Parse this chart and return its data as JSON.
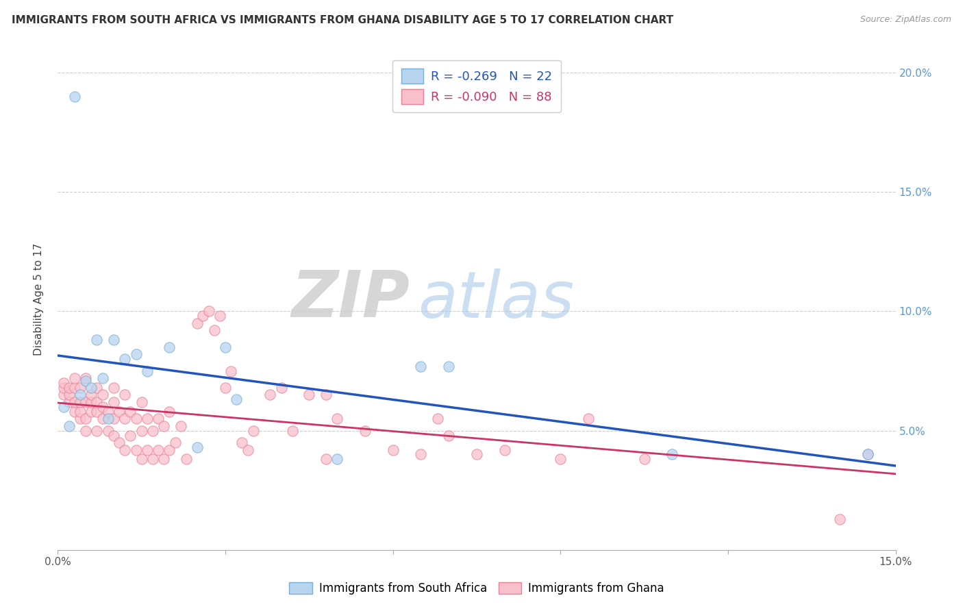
{
  "title": "IMMIGRANTS FROM SOUTH AFRICA VS IMMIGRANTS FROM GHANA DISABILITY AGE 5 TO 17 CORRELATION CHART",
  "source": "Source: ZipAtlas.com",
  "ylabel": "Disability Age 5 to 17",
  "xlim": [
    0.0,
    0.15
  ],
  "ylim": [
    0.0,
    0.21
  ],
  "xtick_positions": [
    0.0,
    0.03,
    0.06,
    0.09,
    0.12,
    0.15
  ],
  "xtick_labels": [
    "0.0%",
    "",
    "",
    "",
    "",
    "15.0%"
  ],
  "yticks_right": [
    0.05,
    0.1,
    0.15,
    0.2
  ],
  "ytick_right_labels": [
    "5.0%",
    "10.0%",
    "15.0%",
    "20.0%"
  ],
  "grid_color": "#cccccc",
  "background_color": "#ffffff",
  "series": [
    {
      "name": "Immigrants from South Africa",
      "R": -0.269,
      "N": 22,
      "color": "#b8d4ee",
      "edge_color": "#7aadd4",
      "line_color": "#2255bb",
      "x": [
        0.001,
        0.002,
        0.003,
        0.004,
        0.005,
        0.006,
        0.007,
        0.008,
        0.009,
        0.01,
        0.012,
        0.014,
        0.016,
        0.02,
        0.025,
        0.03,
        0.032,
        0.05,
        0.065,
        0.07,
        0.11,
        0.145
      ],
      "y": [
        0.06,
        0.052,
        0.19,
        0.065,
        0.071,
        0.068,
        0.088,
        0.072,
        0.055,
        0.088,
        0.08,
        0.082,
        0.075,
        0.085,
        0.043,
        0.085,
        0.063,
        0.038,
        0.077,
        0.077,
        0.04,
        0.04
      ]
    },
    {
      "name": "Immigrants from Ghana",
      "R": -0.09,
      "N": 88,
      "color": "#f9c0cc",
      "edge_color": "#e88098",
      "line_color": "#cc3366",
      "x": [
        0.001,
        0.001,
        0.001,
        0.002,
        0.002,
        0.002,
        0.003,
        0.003,
        0.003,
        0.003,
        0.004,
        0.004,
        0.004,
        0.004,
        0.005,
        0.005,
        0.005,
        0.005,
        0.006,
        0.006,
        0.006,
        0.007,
        0.007,
        0.007,
        0.007,
        0.008,
        0.008,
        0.008,
        0.009,
        0.009,
        0.01,
        0.01,
        0.01,
        0.01,
        0.011,
        0.011,
        0.012,
        0.012,
        0.012,
        0.013,
        0.013,
        0.014,
        0.014,
        0.015,
        0.015,
        0.015,
        0.016,
        0.016,
        0.017,
        0.017,
        0.018,
        0.018,
        0.019,
        0.019,
        0.02,
        0.02,
        0.021,
        0.022,
        0.023,
        0.025,
        0.026,
        0.027,
        0.028,
        0.029,
        0.03,
        0.031,
        0.033,
        0.034,
        0.035,
        0.038,
        0.04,
        0.042,
        0.045,
        0.048,
        0.05,
        0.055,
        0.06,
        0.065,
        0.068,
        0.07,
        0.075,
        0.08,
        0.09,
        0.095,
        0.105,
        0.14,
        0.145,
        0.048
      ],
      "y": [
        0.065,
        0.068,
        0.07,
        0.062,
        0.065,
        0.068,
        0.058,
        0.062,
        0.068,
        0.072,
        0.055,
        0.058,
        0.062,
        0.068,
        0.05,
        0.055,
        0.062,
        0.072,
        0.058,
        0.062,
        0.065,
        0.05,
        0.058,
        0.062,
        0.068,
        0.055,
        0.06,
        0.065,
        0.05,
        0.058,
        0.048,
        0.055,
        0.062,
        0.068,
        0.045,
        0.058,
        0.042,
        0.055,
        0.065,
        0.048,
        0.058,
        0.042,
        0.055,
        0.038,
        0.05,
        0.062,
        0.042,
        0.055,
        0.038,
        0.05,
        0.042,
        0.055,
        0.038,
        0.052,
        0.042,
        0.058,
        0.045,
        0.052,
        0.038,
        0.095,
        0.098,
        0.1,
        0.092,
        0.098,
        0.068,
        0.075,
        0.045,
        0.042,
        0.05,
        0.065,
        0.068,
        0.05,
        0.065,
        0.038,
        0.055,
        0.05,
        0.042,
        0.04,
        0.055,
        0.048,
        0.04,
        0.042,
        0.038,
        0.055,
        0.038,
        0.013,
        0.04,
        0.065
      ]
    }
  ],
  "watermark_zip": "ZIP",
  "watermark_atlas": "atlas",
  "title_fontsize": 11,
  "axis_label_fontsize": 11,
  "tick_fontsize": 11,
  "marker_size": 11,
  "marker_alpha": 0.75
}
